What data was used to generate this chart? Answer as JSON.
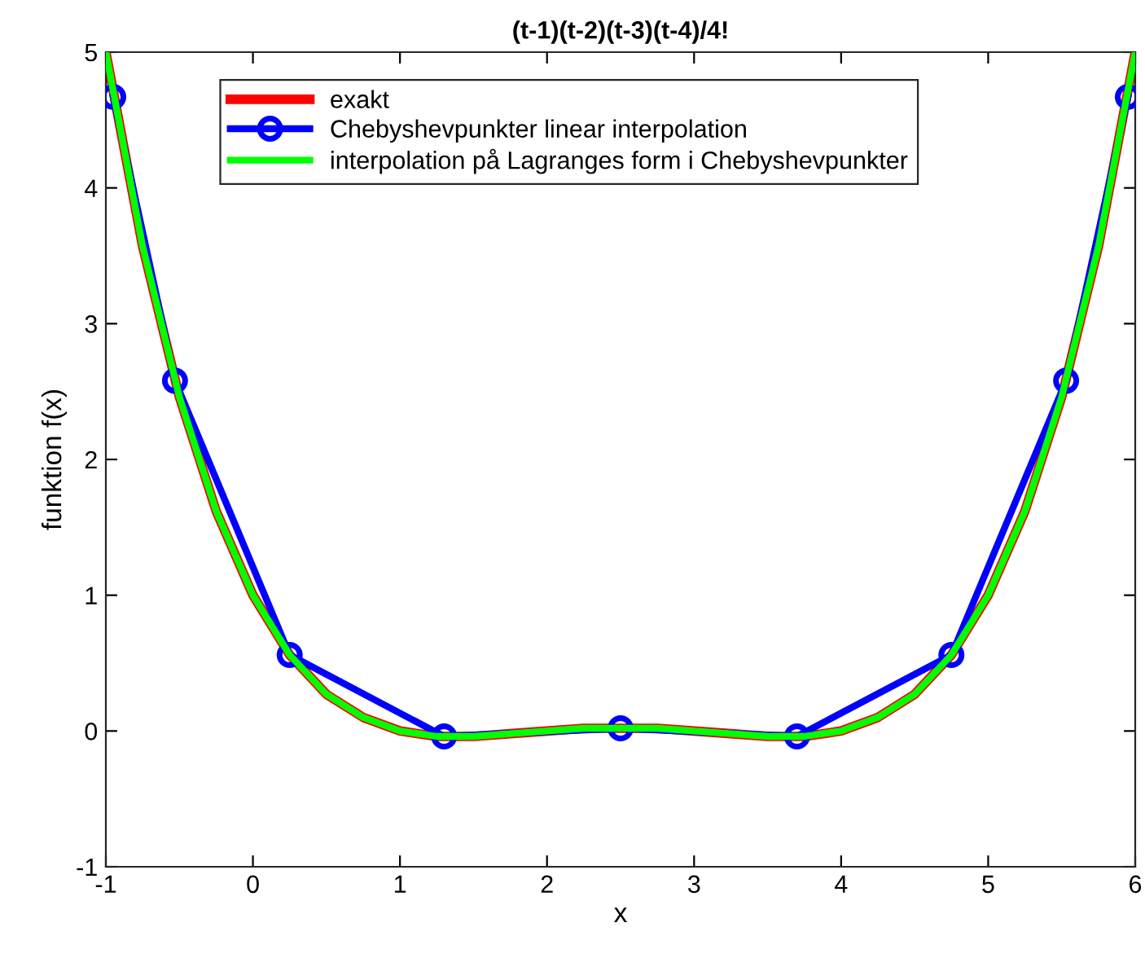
{
  "chart_data": {
    "type": "line",
    "title": "(t-1)(t-2)(t-3)(t-4)/4!",
    "xlabel": "x",
    "ylabel": "funktion f(x)",
    "xlim": [
      -1,
      6
    ],
    "ylim": [
      -1,
      5
    ],
    "xticks": [
      -1,
      0,
      1,
      2,
      3,
      4,
      5,
      6
    ],
    "yticks": [
      -1,
      0,
      1,
      2,
      3,
      4,
      5
    ],
    "grid": false,
    "legend": "top",
    "series": [
      {
        "name": "exakt",
        "color": "#ff0000",
        "marker": "none",
        "x": [
          -1,
          -0.75,
          -0.5,
          -0.25,
          0,
          0.25,
          0.5,
          0.75,
          1,
          1.25,
          1.5,
          1.75,
          2,
          2.25,
          2.5,
          2.75,
          3,
          3.25,
          3.5,
          3.75,
          4,
          4.25,
          4.5,
          4.75,
          5,
          5.25,
          5.5,
          5.75,
          6
        ],
        "values": [
          5,
          3.57,
          2.46,
          1.62,
          1,
          0.56,
          0.27,
          0.1,
          0,
          -0.04,
          -0.04,
          -0.02,
          0,
          0.02,
          0.02,
          0.02,
          0,
          -0.02,
          -0.04,
          -0.04,
          0,
          0.1,
          0.27,
          0.56,
          1,
          1.62,
          2.46,
          3.57,
          5
        ]
      },
      {
        "name": "Chebyshevpunkter linear interpolation",
        "color": "#0000ff",
        "marker": "circle",
        "x": [
          -0.95,
          -0.53,
          0.25,
          1.3,
          2.5,
          3.7,
          4.75,
          5.53,
          5.95
        ],
        "values": [
          4.67,
          2.58,
          0.56,
          -0.04,
          0.02,
          -0.04,
          0.56,
          2.58,
          4.67
        ]
      },
      {
        "name": "interpolation på Lagranges form i Chebyshevpunkter",
        "color": "#00ff00",
        "marker": "none",
        "x": [
          -1,
          -0.75,
          -0.5,
          -0.25,
          0,
          0.25,
          0.5,
          0.75,
          1,
          1.25,
          1.5,
          1.75,
          2,
          2.25,
          2.5,
          2.75,
          3,
          3.25,
          3.5,
          3.75,
          4,
          4.25,
          4.5,
          4.75,
          5,
          5.25,
          5.5,
          5.75,
          6
        ],
        "values": [
          5,
          3.57,
          2.46,
          1.62,
          1,
          0.56,
          0.27,
          0.1,
          0,
          -0.04,
          -0.04,
          -0.02,
          0,
          0.02,
          0.02,
          0.02,
          0,
          -0.02,
          -0.04,
          -0.04,
          0,
          0.1,
          0.27,
          0.56,
          1,
          1.62,
          2.46,
          3.57,
          5
        ]
      }
    ]
  }
}
